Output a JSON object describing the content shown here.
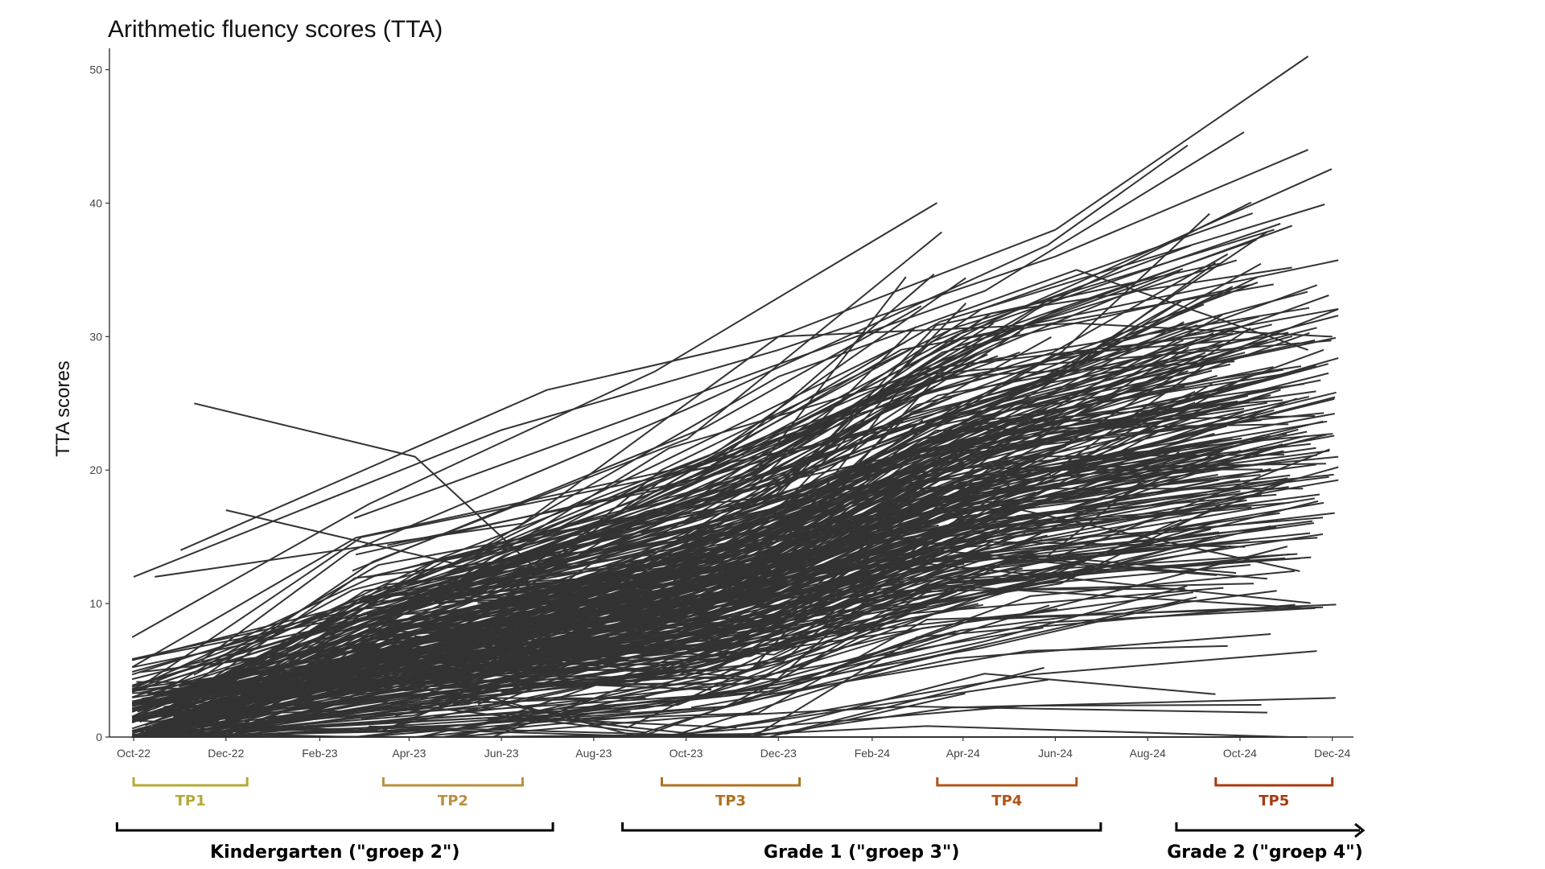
{
  "chart_data": {
    "type": "line",
    "title": "Arithmetic fluency scores (TTA)",
    "ylabel": "TTA scores",
    "xlabel": "",
    "ylim": [
      0,
      51
    ],
    "xlim": [
      "2022-09-15",
      "2024-12-15"
    ],
    "y_ticks": [
      0,
      10,
      20,
      30,
      40,
      50
    ],
    "x_ticks": [
      {
        "date": "2022-10-01",
        "label": "Oct-22"
      },
      {
        "date": "2022-12-01",
        "label": "Dec-22"
      },
      {
        "date": "2023-02-01",
        "label": "Feb-23"
      },
      {
        "date": "2023-04-01",
        "label": "Apr-23"
      },
      {
        "date": "2023-06-01",
        "label": "Jun-23"
      },
      {
        "date": "2023-08-01",
        "label": "Aug-23"
      },
      {
        "date": "2023-10-01",
        "label": "Oct-23"
      },
      {
        "date": "2023-12-01",
        "label": "Dec-23"
      },
      {
        "date": "2024-02-01",
        "label": "Feb-24"
      },
      {
        "date": "2024-04-01",
        "label": "Apr-24"
      },
      {
        "date": "2024-06-01",
        "label": "Jun-24"
      },
      {
        "date": "2024-08-01",
        "label": "Aug-24"
      },
      {
        "date": "2024-10-01",
        "label": "Oct-24"
      },
      {
        "date": "2024-12-01",
        "label": "Dec-24"
      }
    ],
    "grid": false,
    "legend": "none",
    "line_color": "#333333",
    "timepoints": [
      {
        "label": "TP1",
        "start": "2022-10-01",
        "end": "2022-12-15",
        "color": "#b8a935"
      },
      {
        "label": "TP2",
        "start": "2023-03-15",
        "end": "2023-06-15",
        "color": "#b89040"
      },
      {
        "label": "TP3",
        "start": "2023-09-15",
        "end": "2023-12-15",
        "color": "#b07020"
      },
      {
        "label": "TP4",
        "start": "2024-03-15",
        "end": "2024-06-15",
        "color": "#b05518"
      },
      {
        "label": "TP5",
        "start": "2024-09-15",
        "end": "2024-12-01",
        "color": "#a83a10"
      }
    ],
    "phases": [
      {
        "label": "Kindergarten (\"groep 2\")",
        "start": "2022-09-20",
        "end": "2023-07-05",
        "arrow": false
      },
      {
        "label": "Grade 1 (\"groep 3\")",
        "start": "2023-08-20",
        "end": "2024-07-01",
        "arrow": false
      },
      {
        "label": "Grade 2 (\"groep 4\")",
        "start": "2024-08-20",
        "end": "2024-12-15",
        "arrow": true
      }
    ],
    "series_count": 400,
    "highlighted_series": [
      {
        "x": [
          "2022-11-10",
          "2023-04-05",
          "2023-06-20",
          "2024-01-01"
        ],
        "y": [
          25,
          21,
          13,
          18
        ]
      },
      {
        "x": [
          "2022-11-01",
          "2023-07-01",
          "2023-12-01",
          "2024-06-01",
          "2024-11-15"
        ],
        "y": [
          14,
          26,
          30,
          38,
          51
        ]
      },
      {
        "x": [
          "2022-10-01",
          "2023-06-01",
          "2023-12-01",
          "2024-06-01",
          "2024-11-15"
        ],
        "y": [
          12,
          23,
          29,
          36,
          44
        ]
      },
      {
        "x": [
          "2022-12-01",
          "2023-05-01",
          "2023-12-01",
          "2024-06-15",
          "2024-11-15"
        ],
        "y": [
          17,
          13,
          27,
          35,
          29
        ]
      },
      {
        "x": [
          "2022-10-15",
          "2023-06-15",
          "2023-12-01",
          "2024-06-15",
          "2024-12-01"
        ],
        "y": [
          12,
          16,
          30,
          31,
          30
        ]
      }
    ],
    "mean_trend": {
      "x": [
        "2022-10-15",
        "2023-04-15",
        "2023-10-15",
        "2024-04-15",
        "2024-10-15"
      ],
      "y": [
        1.8,
        6.5,
        10.5,
        18.5,
        23.0
      ]
    }
  }
}
